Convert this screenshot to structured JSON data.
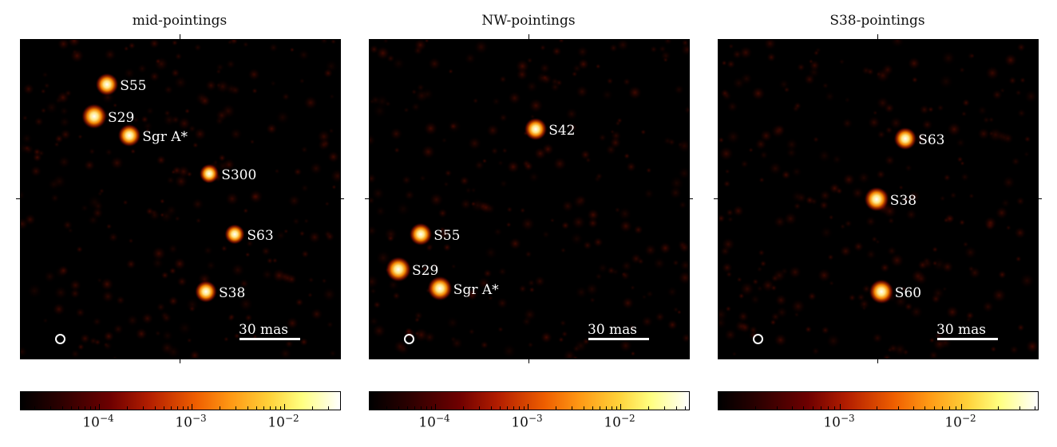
{
  "panels": [
    {
      "title": "mid-pointings",
      "sources": [
        {
          "label": "S55",
          "u": 0.27,
          "v": 0.14,
          "bright": 0.8
        },
        {
          "label": "S29",
          "u": 0.23,
          "v": 0.24,
          "bright": 1.0
        },
        {
          "label": "Sgr A*",
          "u": 0.34,
          "v": 0.3,
          "bright": 0.8
        },
        {
          "label": "S300",
          "u": 0.59,
          "v": 0.42,
          "bright": 0.55
        },
        {
          "label": "S63",
          "u": 0.67,
          "v": 0.61,
          "bright": 0.6
        },
        {
          "label": "S38",
          "u": 0.58,
          "v": 0.79,
          "bright": 0.75
        }
      ],
      "scalebar": "30 mas",
      "cbar_ticks": [
        {
          "base": "10",
          "exp": "−4",
          "frac": 0.245
        },
        {
          "base": "10",
          "exp": "−3",
          "frac": 0.535
        },
        {
          "base": "10",
          "exp": "−2",
          "frac": 0.825
        }
      ]
    },
    {
      "title": "NW-pointings",
      "sources": [
        {
          "label": "S42",
          "u": 0.52,
          "v": 0.28,
          "bright": 0.8
        },
        {
          "label": "S55",
          "u": 0.16,
          "v": 0.61,
          "bright": 0.8
        },
        {
          "label": "S29",
          "u": 0.09,
          "v": 0.72,
          "bright": 1.0
        },
        {
          "label": "Sgr A*",
          "u": 0.22,
          "v": 0.78,
          "bright": 0.95
        }
      ],
      "scalebar": "30 mas",
      "cbar_ticks": [
        {
          "base": "10",
          "exp": "−4",
          "frac": 0.205
        },
        {
          "base": "10",
          "exp": "−3",
          "frac": 0.495
        },
        {
          "base": "10",
          "exp": "−2",
          "frac": 0.785
        }
      ]
    },
    {
      "title": "S38-pointings",
      "sources": [
        {
          "label": "S63",
          "u": 0.585,
          "v": 0.31,
          "bright": 0.8
        },
        {
          "label": "S38",
          "u": 0.495,
          "v": 0.5,
          "bright": 0.95
        },
        {
          "label": "S60",
          "u": 0.51,
          "v": 0.79,
          "bright": 0.95
        }
      ],
      "scalebar": "30 mas",
      "cbar_ticks": [
        {
          "base": "10",
          "exp": "−3",
          "frac": 0.38
        },
        {
          "base": "10",
          "exp": "−2",
          "frac": 0.76
        }
      ]
    }
  ]
}
